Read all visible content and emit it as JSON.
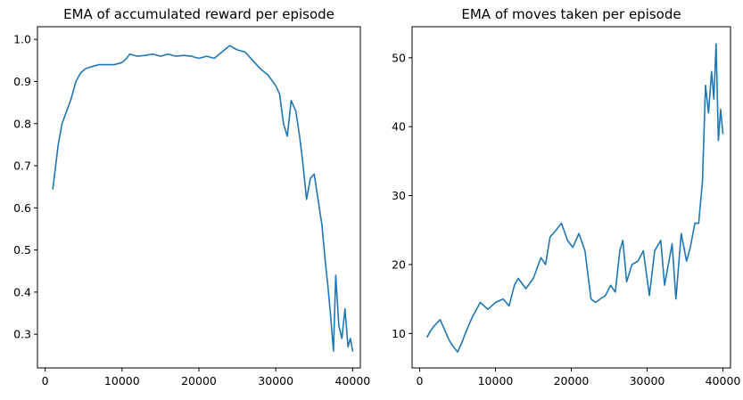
{
  "chart_data": [
    {
      "type": "line",
      "title": "EMA of accumulated reward per episode",
      "xlabel": "",
      "ylabel": "",
      "xlim": [
        -1000,
        41000
      ],
      "ylim": [
        0.22,
        1.03
      ],
      "xticks": [
        0,
        10000,
        20000,
        30000,
        40000
      ],
      "xtick_labels": [
        "0",
        "10000",
        "20000",
        "30000",
        "40000"
      ],
      "yticks": [
        0.3,
        0.4,
        0.5,
        0.6,
        0.7,
        0.8,
        0.9,
        1.0
      ],
      "ytick_labels": [
        "0.3",
        "0.4",
        "0.5",
        "0.6",
        "0.7",
        "0.8",
        "0.9",
        "1.0"
      ],
      "grid": false,
      "line_color": "#1f77b4",
      "series": [
        {
          "x": [
            1000,
            1300,
            1700,
            2200,
            2800,
            3400,
            4000,
            4600,
            5200,
            6000,
            7000,
            8000,
            9000,
            10000,
            10600,
            11000,
            12000,
            13000,
            14000,
            15000,
            16000,
            17000,
            18000,
            19000,
            20000,
            21000,
            22000,
            23000,
            24000,
            25000,
            26000,
            27000,
            28000,
            29000,
            30000,
            30500,
            31000,
            31500,
            32000,
            32600,
            33100,
            33500,
            34000,
            34500,
            35000,
            35500,
            36000,
            36400,
            36800,
            37200,
            37500,
            37800,
            38200,
            38600,
            39000,
            39400,
            39700,
            40000
          ],
          "y": [
            0.645,
            0.69,
            0.75,
            0.8,
            0.83,
            0.86,
            0.9,
            0.92,
            0.93,
            0.935,
            0.94,
            0.94,
            0.94,
            0.945,
            0.955,
            0.965,
            0.96,
            0.962,
            0.965,
            0.96,
            0.965,
            0.96,
            0.962,
            0.96,
            0.955,
            0.96,
            0.955,
            0.97,
            0.985,
            0.975,
            0.97,
            0.95,
            0.93,
            0.915,
            0.89,
            0.87,
            0.8,
            0.77,
            0.855,
            0.83,
            0.77,
            0.71,
            0.62,
            0.67,
            0.68,
            0.62,
            0.56,
            0.48,
            0.41,
            0.33,
            0.26,
            0.44,
            0.32,
            0.29,
            0.36,
            0.27,
            0.29,
            0.26
          ]
        }
      ]
    },
    {
      "type": "line",
      "title": "EMA of moves taken per episode",
      "xlabel": "",
      "ylabel": "",
      "xlim": [
        -1000,
        41000
      ],
      "ylim": [
        5,
        54.5
      ],
      "xticks": [
        0,
        10000,
        20000,
        30000,
        40000
      ],
      "xtick_labels": [
        "0",
        "10000",
        "20000",
        "30000",
        "40000"
      ],
      "yticks": [
        10,
        20,
        30,
        40,
        50
      ],
      "ytick_labels": [
        "10",
        "20",
        "30",
        "40",
        "50"
      ],
      "grid": false,
      "line_color": "#1f77b4",
      "series": [
        {
          "x": [
            1000,
            1500,
            2000,
            2700,
            3300,
            3900,
            4500,
            5000,
            5500,
            6200,
            7000,
            8000,
            9000,
            10000,
            11000,
            11800,
            12500,
            13000,
            14000,
            15000,
            16000,
            16600,
            17200,
            18000,
            18700,
            19500,
            20200,
            21000,
            21800,
            22600,
            23200,
            23800,
            24500,
            25200,
            25800,
            26400,
            26800,
            27300,
            28000,
            28800,
            29500,
            30300,
            31000,
            31800,
            32300,
            32800,
            33300,
            33800,
            34500,
            35200,
            35700,
            36300,
            36800,
            37300,
            37700,
            38100,
            38500,
            38800,
            39100,
            39400,
            39700,
            40000
          ],
          "y": [
            9.5,
            10.5,
            11.2,
            12.0,
            10.5,
            9.0,
            8.0,
            7.3,
            8.5,
            10.5,
            12.5,
            14.5,
            13.5,
            14.5,
            15.0,
            14.0,
            17.0,
            18.0,
            16.5,
            18.0,
            21.0,
            20.0,
            24.0,
            25.0,
            26.0,
            23.5,
            22.5,
            24.5,
            22.0,
            15.0,
            14.5,
            15.0,
            15.5,
            17.0,
            16.0,
            22.0,
            23.5,
            17.5,
            20.0,
            20.5,
            22.0,
            15.5,
            22.0,
            23.5,
            17.0,
            20.0,
            23.0,
            15.0,
            24.5,
            20.5,
            22.5,
            26.0,
            26.0,
            32.0,
            46.0,
            42.0,
            48.0,
            44.0,
            52.0,
            38.0,
            42.5,
            39.0
          ]
        }
      ]
    }
  ]
}
